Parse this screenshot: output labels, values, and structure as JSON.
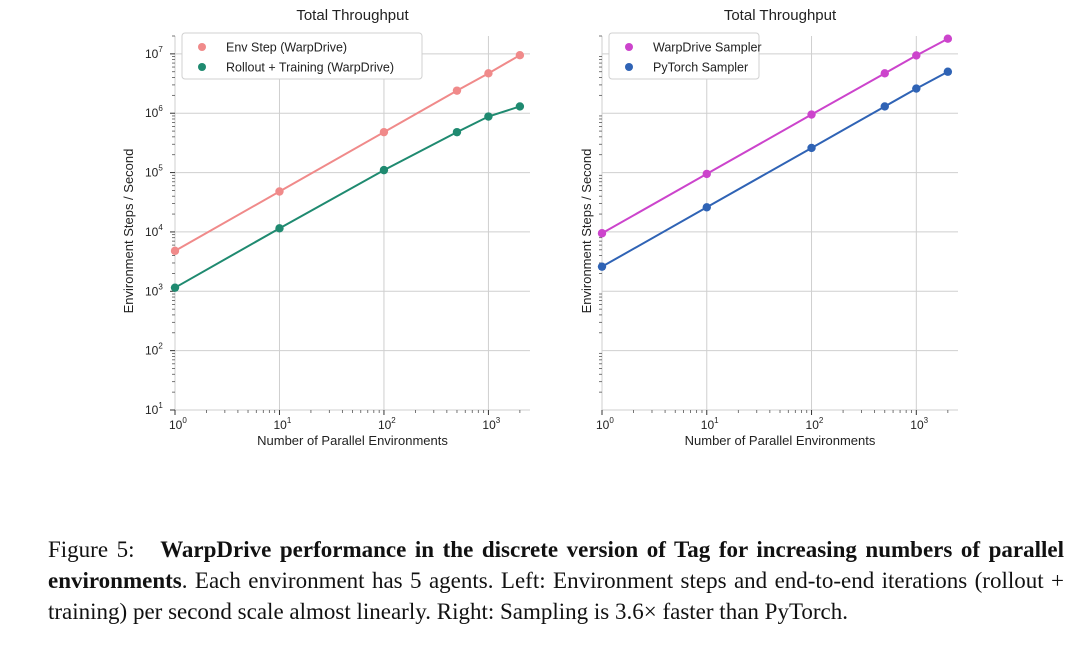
{
  "chart_data": [
    {
      "type": "line",
      "title": "Total Throughput",
      "xlabel": "Number of Parallel Environments",
      "ylabel": "Environment Steps / Second",
      "xscale": "log",
      "yscale": "log",
      "xlim": [
        1,
        2500
      ],
      "ylim": [
        10,
        20000000
      ],
      "grid": true,
      "legend": "top-left",
      "x_ticks": [
        {
          "base": "10",
          "exp": "0",
          "value": 1
        },
        {
          "base": "10",
          "exp": "1",
          "value": 10
        },
        {
          "base": "10",
          "exp": "2",
          "value": 100
        },
        {
          "base": "10",
          "exp": "3",
          "value": 1000
        }
      ],
      "y_ticks": [
        {
          "base": "10",
          "exp": "1",
          "value": 10
        },
        {
          "base": "10",
          "exp": "2",
          "value": 100
        },
        {
          "base": "10",
          "exp": "3",
          "value": 1000
        },
        {
          "base": "10",
          "exp": "4",
          "value": 10000
        },
        {
          "base": "10",
          "exp": "5",
          "value": 100000
        },
        {
          "base": "10",
          "exp": "6",
          "value": 1000000
        },
        {
          "base": "10",
          "exp": "7",
          "value": 10000000
        }
      ],
      "series": [
        {
          "name": "Env Step (WarpDrive)",
          "color": "#f08a8a",
          "x": [
            1,
            10,
            100,
            500,
            1000,
            2000
          ],
          "y": [
            4800,
            48000,
            480000,
            2400000,
            4700000,
            9500000
          ]
        },
        {
          "name": "Rollout + Training (WarpDrive)",
          "color": "#1f8a70",
          "x": [
            1,
            10,
            100,
            500,
            1000,
            2000
          ],
          "y": [
            1150,
            11500,
            110000,
            480000,
            880000,
            1300000
          ]
        }
      ]
    },
    {
      "type": "line",
      "title": "Total Throughput",
      "xlabel": "Number of Parallel Environments",
      "ylabel": "Environment Steps / Second",
      "xscale": "log",
      "yscale": "log",
      "xlim": [
        1,
        2500
      ],
      "ylim": [
        10,
        20000000
      ],
      "grid": true,
      "legend": "top-left",
      "x_ticks": [
        {
          "base": "10",
          "exp": "0",
          "value": 1
        },
        {
          "base": "10",
          "exp": "1",
          "value": 10
        },
        {
          "base": "10",
          "exp": "2",
          "value": 100
        },
        {
          "base": "10",
          "exp": "3",
          "value": 1000
        }
      ],
      "y_ticks": [],
      "series": [
        {
          "name": "WarpDrive Sampler",
          "color": "#cc44cc",
          "x": [
            1,
            10,
            100,
            500,
            1000,
            2000
          ],
          "y": [
            9500,
            95000,
            950000,
            4700000,
            9400000,
            18000000
          ]
        },
        {
          "name": "PyTorch Sampler",
          "color": "#2f63b5",
          "x": [
            1,
            10,
            100,
            500,
            1000,
            2000
          ],
          "y": [
            2600,
            26000,
            260000,
            1300000,
            2600000,
            5000000
          ]
        }
      ]
    }
  ],
  "caption": {
    "label": "Figure 5:",
    "bold": "WarpDrive performance in the discrete version of Tag for increasing numbers of parallel environments",
    "rest": ". Each environment has 5 agents. Left: Environment steps and end-to-end iterations (rollout + training) per second scale almost linearly. Right: Sampling is 3.6× faster than PyTorch."
  }
}
